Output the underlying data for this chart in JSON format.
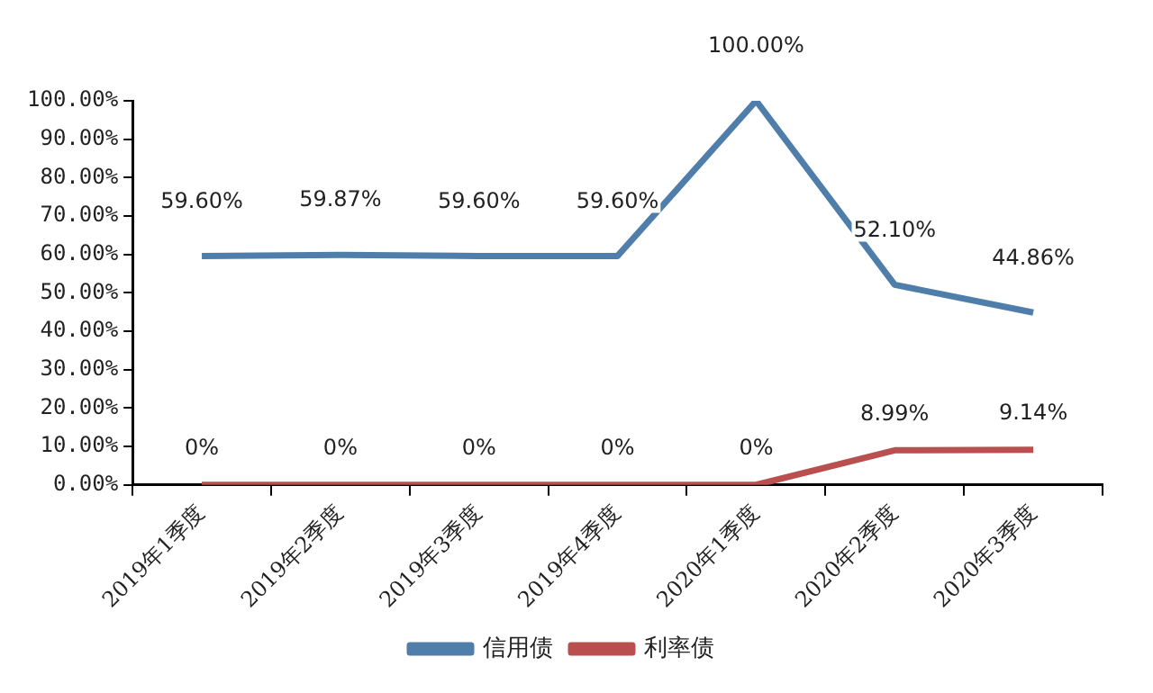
{
  "chart_data": {
    "type": "line",
    "categories": [
      "2019年1季度",
      "2019年2季度",
      "2019年3季度",
      "2019年4季度",
      "2020年1季度",
      "2020年2季度",
      "2020年3季度"
    ],
    "series": [
      {
        "name": "信用债",
        "color": "#4f7eaa",
        "values": [
          59.6,
          59.87,
          59.6,
          59.6,
          100,
          52.1,
          44.86
        ],
        "value_labels": [
          "59.60%",
          "59.87%",
          "59.60%",
          "59.60%",
          "100.00%",
          "52.10%",
          "44.86%"
        ]
      },
      {
        "name": "利率债",
        "color": "#b94f4f",
        "values": [
          0,
          0,
          0,
          0,
          0,
          8.99,
          9.14
        ],
        "value_labels": [
          "0%",
          "0%",
          "0%",
          "0%",
          "0%",
          "8.99%",
          "9.14%"
        ]
      }
    ],
    "ylim": [
      0,
      100
    ],
    "yticks": [
      {
        "value": 0,
        "label": "0.00%"
      },
      {
        "value": 10,
        "label": "10.00%"
      },
      {
        "value": 20,
        "label": "20.00%"
      },
      {
        "value": 30,
        "label": "30.00%"
      },
      {
        "value": 40,
        "label": "40.00%"
      },
      {
        "value": 50,
        "label": "50.00%"
      },
      {
        "value": 60,
        "label": "60.00%"
      },
      {
        "value": 70,
        "label": "70.00%"
      },
      {
        "value": 80,
        "label": "80.00%"
      },
      {
        "value": 90,
        "label": "90.00%"
      },
      {
        "value": 100,
        "label": "100.00%"
      }
    ],
    "grid": false,
    "legend": "bottom",
    "marker": "none",
    "line_style": "solid"
  }
}
